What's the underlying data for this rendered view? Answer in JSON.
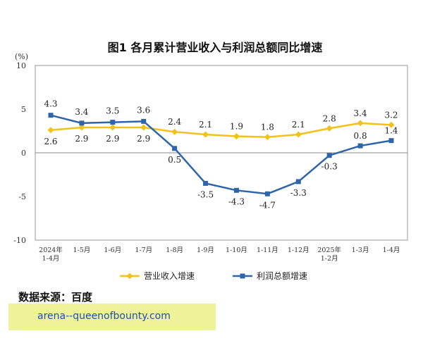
{
  "chart_data": {
    "type": "line",
    "title": "图1 各月累计营业收入与利润总额同比增速",
    "unit_label": "(%)",
    "ylim": [
      -10,
      10
    ],
    "yticks": [
      10,
      5,
      0,
      -5,
      -10
    ],
    "grid": false,
    "legend_position": "bottom",
    "categories": [
      {
        "line1": "2024年",
        "line2": "1-4月"
      },
      {
        "line1": "1-5月",
        "line2": ""
      },
      {
        "line1": "1-6月",
        "line2": ""
      },
      {
        "line1": "1-7月",
        "line2": ""
      },
      {
        "line1": "1-8月",
        "line2": ""
      },
      {
        "line1": "1-9月",
        "line2": ""
      },
      {
        "line1": "1-10月",
        "line2": ""
      },
      {
        "line1": "1-11月",
        "line2": ""
      },
      {
        "line1": "1-12月",
        "line2": ""
      },
      {
        "line1": "2025年",
        "line2": "1-2月"
      },
      {
        "line1": "1-3月",
        "line2": ""
      },
      {
        "line1": "1-4月",
        "line2": ""
      }
    ],
    "series": [
      {
        "name": "营业收入增速",
        "color": "#f2c21a",
        "values": [
          2.6,
          2.9,
          2.9,
          2.9,
          2.4,
          2.1,
          1.9,
          1.8,
          2.1,
          2.8,
          3.4,
          3.2
        ],
        "labels": [
          "2.6",
          "2.9",
          "2.9",
          "2.9",
          "2.4",
          "2.1",
          "1.9",
          "1.8",
          "2.1",
          "2.8",
          "3.4",
          "3.2"
        ]
      },
      {
        "name": "利润总额增速",
        "color": "#2e64a8",
        "values": [
          4.3,
          3.4,
          3.5,
          3.6,
          0.5,
          -3.5,
          -4.3,
          -4.7,
          -3.3,
          -0.3,
          0.8,
          1.4
        ],
        "labels": [
          "4.3",
          "3.4",
          "3.5",
          "3.6",
          "0.5",
          "-3.5",
          "-4.3",
          "-4.7",
          "-3.3",
          "-0.3",
          "0.8",
          "1.4"
        ]
      }
    ]
  },
  "footer": {
    "source": "数据来源：百度",
    "watermark": "arena--queenofbounty.com"
  }
}
